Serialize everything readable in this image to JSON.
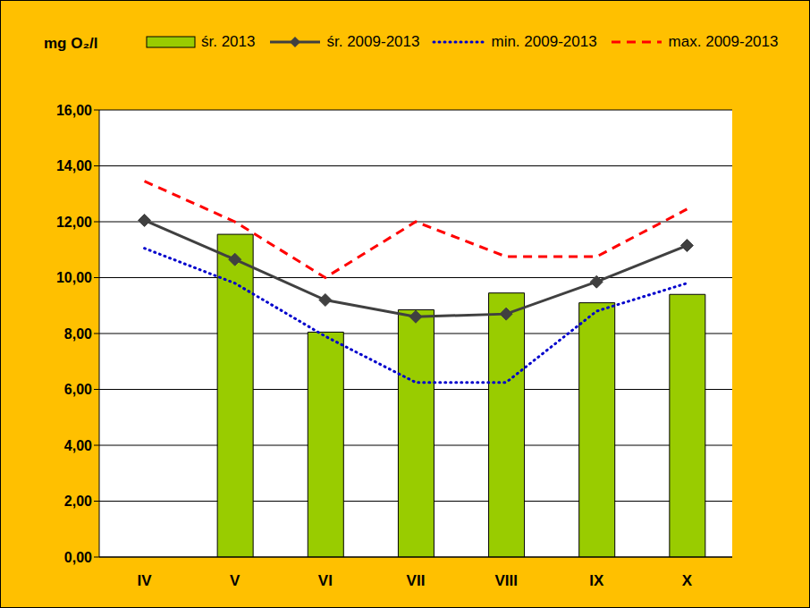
{
  "chart_data": {
    "type": "bar",
    "y_label": "mg O₂/l",
    "categories": [
      "IV",
      "V",
      "VI",
      "VII",
      "VIII",
      "IX",
      "X"
    ],
    "series": [
      {
        "name": "śr. 2013",
        "type": "bar",
        "color": "#99cc00",
        "values": [
          null,
          11.55,
          8.05,
          8.85,
          9.45,
          9.1,
          9.4
        ]
      },
      {
        "name": "śr. 2009-2013",
        "type": "line",
        "color": "#404040",
        "marker": "diamond",
        "line_style": "solid",
        "values": [
          12.05,
          10.65,
          9.2,
          8.6,
          8.7,
          9.85,
          11.15
        ]
      },
      {
        "name": "min. 2009-2013",
        "type": "line",
        "color": "#0000cc",
        "line_style": "dotted",
        "values": [
          11.05,
          9.8,
          7.9,
          6.25,
          6.25,
          8.8,
          9.8
        ]
      },
      {
        "name": "max. 2009-2013",
        "type": "line",
        "color": "#ff0000",
        "line_style": "dashed",
        "values": [
          13.45,
          12.0,
          10.0,
          12.0,
          10.75,
          10.75,
          12.45
        ]
      }
    ],
    "ylim": [
      0,
      16
    ],
    "yticks": [
      {
        "value": 0,
        "label": "0,00"
      },
      {
        "value": 2,
        "label": "2,00"
      },
      {
        "value": 4,
        "label": "4,00"
      },
      {
        "value": 6,
        "label": "6,00"
      },
      {
        "value": 8,
        "label": "8,00"
      },
      {
        "value": 10,
        "label": "10,00"
      },
      {
        "value": 12,
        "label": "12,00"
      },
      {
        "value": 14,
        "label": "14,00"
      },
      {
        "value": 16,
        "label": "16,00"
      }
    ],
    "grid": true,
    "legend": "top"
  }
}
